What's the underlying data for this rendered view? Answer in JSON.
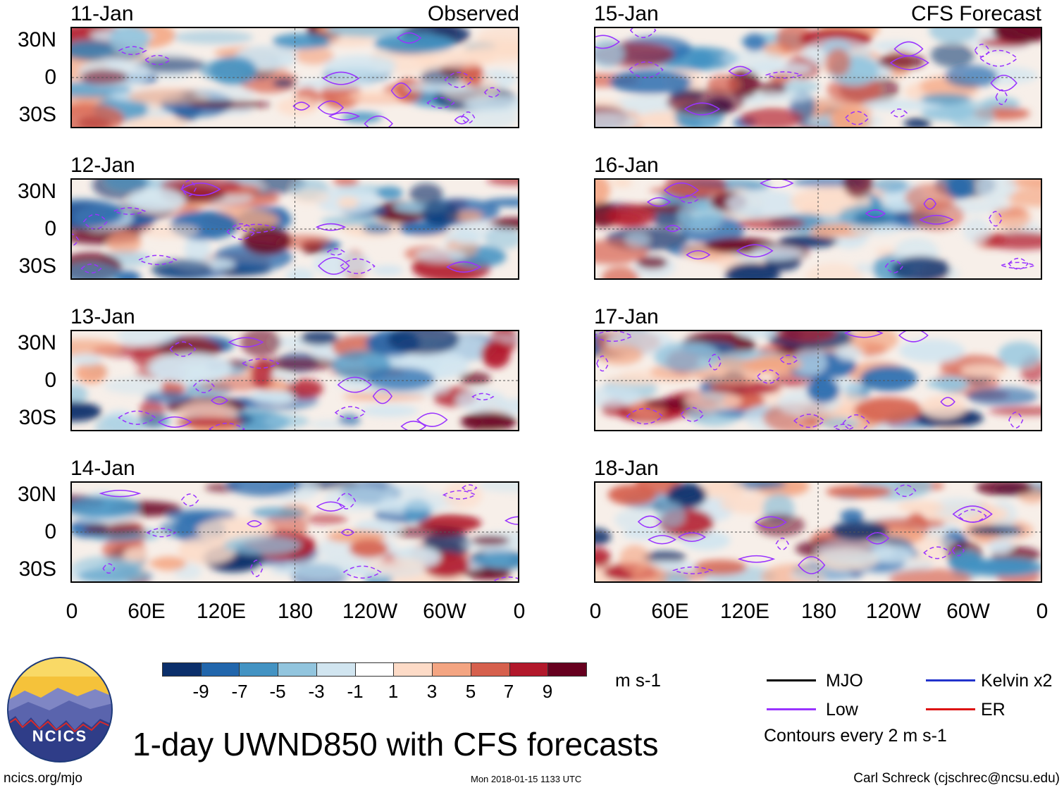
{
  "panels": {
    "observed": [
      {
        "date": "11-Jan",
        "source": "Observed"
      },
      {
        "date": "12-Jan",
        "source": ""
      },
      {
        "date": "13-Jan",
        "source": ""
      },
      {
        "date": "14-Jan",
        "source": ""
      }
    ],
    "forecast": [
      {
        "date": "15-Jan",
        "source": "CFS Forecast"
      },
      {
        "date": "16-Jan",
        "source": ""
      },
      {
        "date": "17-Jan",
        "source": ""
      },
      {
        "date": "18-Jan",
        "source": ""
      }
    ]
  },
  "axes": {
    "lat_labels": [
      "30N",
      "0",
      "30S"
    ],
    "lon_labels": [
      "0",
      "60E",
      "120E",
      "180",
      "120W",
      "60W",
      "0"
    ]
  },
  "colorbar": {
    "colors": [
      "#0b2f6b",
      "#2166ac",
      "#4393c3",
      "#92c5de",
      "#d1e5f0",
      "#ffffff",
      "#fddbc7",
      "#f4a582",
      "#d6604d",
      "#b2182b",
      "#67001f"
    ],
    "labels": [
      "-9",
      "-7",
      "-5",
      "-3",
      "-1",
      "1",
      "3",
      "5",
      "7",
      "9"
    ],
    "units": "m s-1"
  },
  "legend": {
    "items": [
      {
        "label": "MJO",
        "color": "#000000"
      },
      {
        "label": "Kelvin x2",
        "color": "#2233cc"
      },
      {
        "label": "Low",
        "color": "#9933ff"
      },
      {
        "label": "ER",
        "color": "#dd1111"
      }
    ],
    "note": "Contours every 2 m s-1"
  },
  "logo": {
    "text": "NCICS"
  },
  "title": "1-day UWND850 with CFS forecasts",
  "footer": {
    "url": "ncics.org/mjo",
    "timestamp": "Mon 2018-01-15 1133 UTC",
    "author": "Carl Schreck (cjschrec@ncsu.edu)"
  }
}
